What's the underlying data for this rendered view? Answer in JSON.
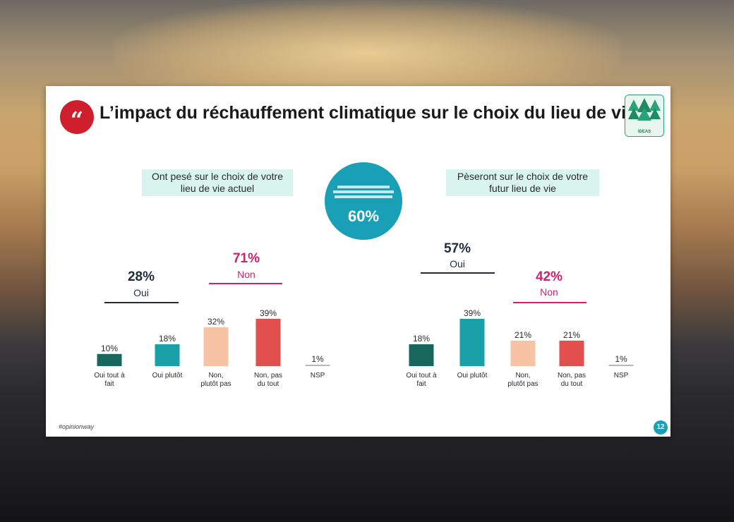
{
  "header": {
    "title": "L’impact du réchauffement climatique sur le choix du lieu de vie",
    "subtitle": "",
    "quote_icon": "quote-icon",
    "logo_text": "IDEAS"
  },
  "left_panel": {
    "heading": "Ont pesé sur le choix de votre lieu de vie actuel",
    "oui_total": "28%",
    "oui_label": "Oui",
    "non_total": "71%",
    "non_label": "Non"
  },
  "right_panel": {
    "heading": "Pèseront sur le choix de votre futur lieu de vie",
    "oui_total": "57%",
    "oui_label": "Oui",
    "non_total": "42%",
    "non_label": "Non"
  },
  "highlight": {
    "value": "60%"
  },
  "footer": {
    "brand": "#opinionway",
    "page": "12"
  },
  "colors": {
    "oui_tout_a_fait": "#17675d",
    "oui_plutot": "#1aa0a9",
    "non_plutot_pas": "#f6c3a4",
    "non_pas_du_tout": "#e2504e",
    "nsp": "#b8b8b8",
    "non_accent": "#d0206f",
    "oui_accent": "#1f2d3a"
  },
  "chart_data": [
    {
      "type": "bar",
      "title": "Ont pesé sur le choix de votre lieu de vie actuel",
      "categories": [
        "Oui tout à fait",
        "Oui plutôt",
        "Non, plutôt pas",
        "Non, pas du tout",
        "NSP"
      ],
      "values": [
        10,
        18,
        32,
        39,
        1
      ],
      "labels": [
        "10%",
        "18%",
        "32%",
        "39%",
        "1%"
      ],
      "groups": [
        {
          "label": "Oui",
          "total": 28
        },
        {
          "label": "Non",
          "total": 71
        }
      ]
    },
    {
      "type": "bar",
      "title": "Pèseront sur le choix de votre futur lieu de vie",
      "categories": [
        "Oui tout à fait",
        "Oui plutôt",
        "Non, plutôt pas",
        "Non, pas du tout",
        "NSP"
      ],
      "values": [
        18,
        39,
        21,
        21,
        1
      ],
      "labels": [
        "18%",
        "39%",
        "21%",
        "21%",
        "1%"
      ],
      "groups": [
        {
          "label": "Oui",
          "total": 57
        },
        {
          "label": "Non",
          "total": 42
        }
      ]
    }
  ]
}
